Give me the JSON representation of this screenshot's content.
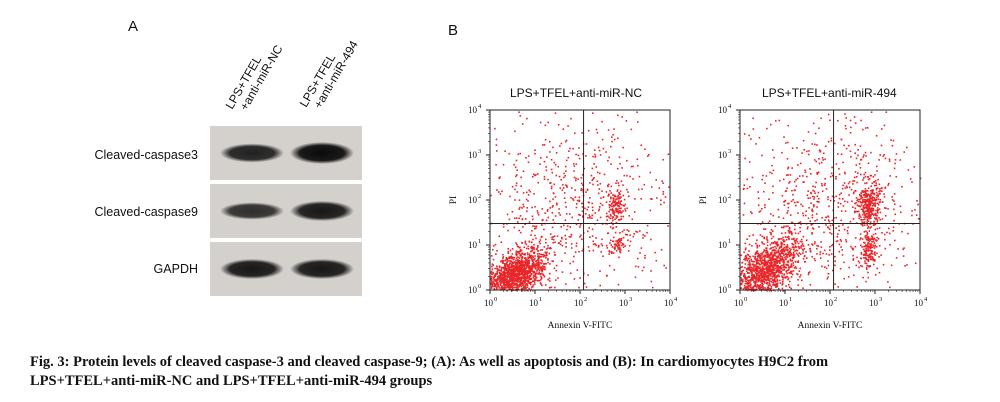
{
  "panel_a": {
    "letter": "A",
    "lanes": [
      {
        "line1": "LPS+TFEL",
        "line2": "+anti-miR-NC"
      },
      {
        "line1": "LPS+TFEL",
        "line2": "+anti-miR-494"
      }
    ],
    "rows": [
      {
        "label": "Cleaved-caspase3",
        "intensity": [
          0.75,
          1.0
        ]
      },
      {
        "label": "Cleaved-caspase9",
        "intensity": [
          0.6,
          0.85
        ]
      },
      {
        "label": "GAPDH",
        "intensity": [
          0.85,
          0.85
        ]
      }
    ]
  },
  "panel_b": {
    "letter": "B",
    "plots": [
      {
        "title": "LPS+TFEL+anti-miR-NC",
        "xlabel": "Annexin V-FITC",
        "ylabel": "PI"
      },
      {
        "title": "LPS+TFEL+anti-miR-494",
        "xlabel": "Annexin V-FITC",
        "ylabel": "PI"
      }
    ],
    "axis": {
      "x_ticks": [
        "10",
        "10",
        "10",
        "10",
        "10"
      ],
      "x_exps": [
        "0",
        "1",
        "2",
        "3",
        "4"
      ],
      "y_ticks": [
        "10",
        "10",
        "10",
        "10",
        "10"
      ],
      "y_exps": [
        "0",
        "1",
        "2",
        "3",
        "4"
      ],
      "scale": "log",
      "range": [
        1,
        10000
      ],
      "gate_x": 120,
      "gate_y": 30
    },
    "dot_color": "#e8262a"
  },
  "caption": {
    "line1": "Fig. 3: Protein levels of cleaved caspase-3 and cleaved caspase-9; (A): As well as apoptosis and (B): In cardiomyocytes H9C2 from",
    "line2": "LPS+TFEL+anti-miR-NC and LPS+TFEL+anti-miR-494 groups"
  }
}
